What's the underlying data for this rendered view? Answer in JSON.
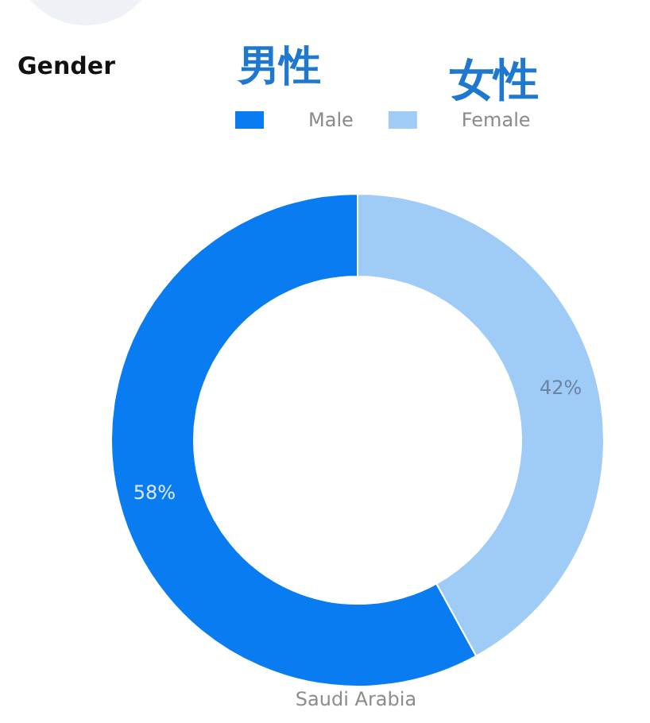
{
  "chart_data": {
    "type": "donut",
    "title": "Gender",
    "annotations": [
      "男性",
      "女性",
      "Saudi Arabia"
    ],
    "categories": [
      "Male",
      "Female"
    ],
    "values": [
      58,
      42
    ],
    "colors": [
      "#0a7cf2",
      "#9fcbf7"
    ],
    "value_labels": [
      "58%",
      "42%"
    ],
    "legend": "top"
  }
}
